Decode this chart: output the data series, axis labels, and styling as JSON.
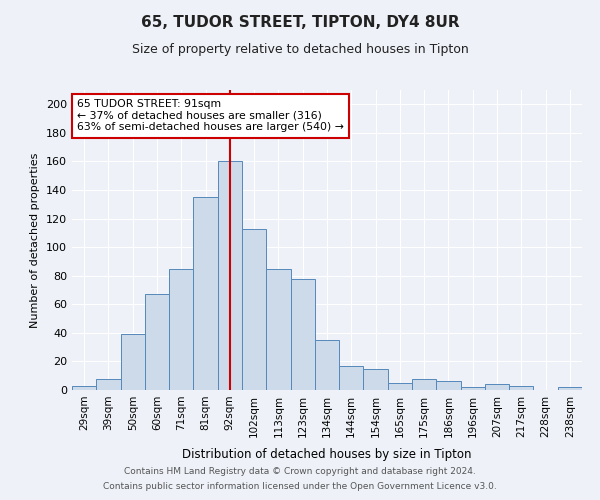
{
  "title": "65, TUDOR STREET, TIPTON, DY4 8UR",
  "subtitle": "Size of property relative to detached houses in Tipton",
  "xlabel": "Distribution of detached houses by size in Tipton",
  "ylabel": "Number of detached properties",
  "bar_labels": [
    "29sqm",
    "39sqm",
    "50sqm",
    "60sqm",
    "71sqm",
    "81sqm",
    "92sqm",
    "102sqm",
    "113sqm",
    "123sqm",
    "134sqm",
    "144sqm",
    "154sqm",
    "165sqm",
    "175sqm",
    "186sqm",
    "196sqm",
    "207sqm",
    "217sqm",
    "228sqm",
    "238sqm"
  ],
  "bar_values": [
    3,
    8,
    39,
    67,
    85,
    135,
    160,
    113,
    85,
    78,
    35,
    17,
    15,
    5,
    8,
    6,
    2,
    4,
    3,
    0,
    2
  ],
  "bar_color": "#ccdaea",
  "bar_edgecolor": "#5588bb",
  "vline_index": 6,
  "vline_color": "#cc0000",
  "annotation_text": "65 TUDOR STREET: 91sqm\n← 37% of detached houses are smaller (316)\n63% of semi-detached houses are larger (540) →",
  "annotation_box_facecolor": "#ffffff",
  "annotation_box_edgecolor": "#cc0000",
  "ylim": [
    0,
    210
  ],
  "yticks": [
    0,
    20,
    40,
    60,
    80,
    100,
    120,
    140,
    160,
    180,
    200
  ],
  "footer1": "Contains HM Land Registry data © Crown copyright and database right 2024.",
  "footer2": "Contains public sector information licensed under the Open Government Licence v3.0.",
  "bg_color": "#eef2f8",
  "plot_bg_color": "#eef2f8",
  "title_fontsize": 11,
  "subtitle_fontsize": 9,
  "xlabel_fontsize": 8.5,
  "ylabel_fontsize": 8,
  "tick_fontsize": 8,
  "xtick_fontsize": 7.5,
  "footer_fontsize": 6.5
}
